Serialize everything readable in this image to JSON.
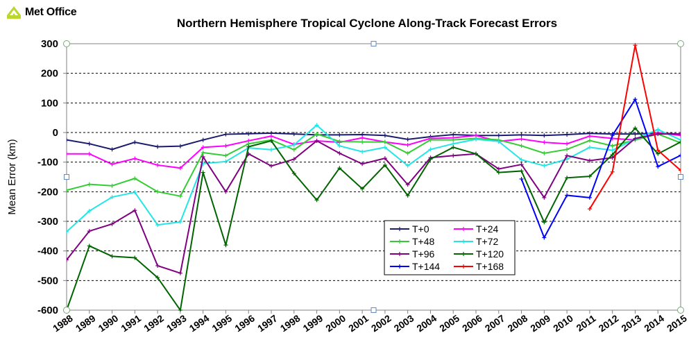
{
  "logo": {
    "text": "Met Office"
  },
  "chart_data": {
    "type": "line",
    "title": "Northern Hemisphere Tropical Cyclone Along-Track Forecast Errors",
    "xlabel": "",
    "ylabel": "Mean Error (km)",
    "ylim": [
      -600,
      300
    ],
    "yticks": [
      300,
      200,
      100,
      0,
      -100,
      -200,
      -300,
      -400,
      -500,
      -600
    ],
    "grid": "horizontal dashed",
    "legend_position": "bottom-center",
    "categories": [
      "1988",
      "1989",
      "1990",
      "1991",
      "1992",
      "1993",
      "1994",
      "1995",
      "1996",
      "1997",
      "1998",
      "1999",
      "2000",
      "2001",
      "2002",
      "2003",
      "2004",
      "2005",
      "2006",
      "2007",
      "2008",
      "2009",
      "2010",
      "2011",
      "2012",
      "2013",
      "2014",
      "2015"
    ],
    "series": [
      {
        "name": "T+0",
        "color": "#1a1a6e",
        "marker": "plus",
        "values": [
          -25,
          -38,
          -57,
          -33,
          -48,
          -46,
          -25,
          -6,
          -4,
          -2,
          -5,
          -8,
          -8,
          -7,
          -10,
          -23,
          -14,
          -7,
          -10,
          -10,
          -8,
          -10,
          -7,
          -3,
          -5,
          -5,
          -2,
          -5
        ]
      },
      {
        "name": "T+24",
        "color": "#ff00ff",
        "marker": "plus",
        "values": [
          -72,
          -72,
          -107,
          -88,
          -110,
          -120,
          -50,
          -45,
          -28,
          -12,
          -40,
          -28,
          -33,
          -18,
          -32,
          -42,
          -20,
          -18,
          -10,
          -30,
          -22,
          -33,
          -38,
          -12,
          -20,
          -25,
          0,
          -10
        ]
      },
      {
        "name": "T+48",
        "color": "#33cc33",
        "marker": "plus",
        "values": [
          -195,
          -175,
          -180,
          -155,
          -200,
          -215,
          -68,
          -78,
          -38,
          -25,
          -58,
          -5,
          -30,
          -32,
          -32,
          -70,
          -25,
          -25,
          -20,
          -25,
          -45,
          -70,
          -57,
          -27,
          -45,
          -25,
          -5,
          -35
        ]
      },
      {
        "name": "T+72",
        "color": "#22e6e6",
        "marker": "plus",
        "values": [
          -335,
          -265,
          -218,
          -202,
          -312,
          -302,
          -105,
          -98,
          -52,
          -58,
          -42,
          25,
          -45,
          -65,
          -50,
          -112,
          -57,
          -38,
          -23,
          -30,
          -92,
          -112,
          -90,
          -50,
          -60,
          -22,
          10,
          -25
        ]
      },
      {
        "name": "T+96",
        "color": "#800080",
        "marker": "plus",
        "values": [
          -430,
          -333,
          -309,
          -263,
          -450,
          -475,
          -82,
          -200,
          -72,
          -113,
          -90,
          -28,
          -70,
          -106,
          -87,
          -176,
          -85,
          -78,
          -72,
          -123,
          -108,
          -220,
          -78,
          -95,
          -85,
          -20,
          -5,
          -5
        ]
      },
      {
        "name": "T+120",
        "color": "#006400",
        "marker": "plus",
        "values": [
          -600,
          -383,
          -418,
          -423,
          -490,
          -600,
          -135,
          -380,
          -48,
          -28,
          -138,
          -228,
          -120,
          -190,
          -110,
          -213,
          -90,
          -50,
          -72,
          -135,
          -130,
          -303,
          -153,
          -148,
          -75,
          15,
          -72,
          -32
        ]
      },
      {
        "name": "T+144",
        "color": "#0000ff",
        "marker": "plus",
        "values": [
          null,
          null,
          null,
          null,
          null,
          null,
          null,
          null,
          null,
          null,
          null,
          null,
          null,
          null,
          null,
          null,
          null,
          null,
          null,
          null,
          -157,
          -355,
          -212,
          -220,
          -10,
          112,
          -115,
          -77
        ]
      },
      {
        "name": "T+168",
        "color": "#ff0000",
        "marker": "plus",
        "values": [
          null,
          null,
          null,
          null,
          null,
          null,
          null,
          null,
          null,
          null,
          null,
          null,
          null,
          null,
          null,
          null,
          null,
          null,
          null,
          null,
          null,
          null,
          null,
          -258,
          -133,
          295,
          -60,
          -128
        ]
      }
    ]
  }
}
